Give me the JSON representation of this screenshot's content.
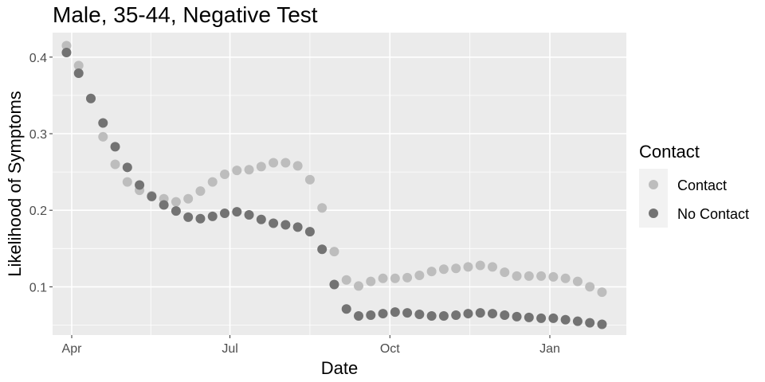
{
  "chart_data": {
    "type": "scatter",
    "title": "Male, 35-44, Negative Test",
    "xlabel": "Date",
    "ylabel": "Likelihood of Symptoms",
    "x_ticks": [
      {
        "label": "Apr",
        "date": "2020-04-01"
      },
      {
        "label": "Jul",
        "date": "2020-07-01"
      },
      {
        "label": "Oct",
        "date": "2020-10-01"
      },
      {
        "label": "Jan",
        "date": "2021-01-01"
      }
    ],
    "y_ticks": [
      0.1,
      0.2,
      0.3,
      0.4
    ],
    "y_tick_labels": [
      "0.1",
      "0.2",
      "0.3",
      "0.4"
    ],
    "xlim": [
      "2020-03-21",
      "2021-02-14"
    ],
    "ylim": [
      0.037,
      0.432
    ],
    "grid": true,
    "legend": {
      "title": "Contact",
      "position": "right",
      "entries": [
        "Contact",
        "No Contact"
      ]
    },
    "colors": {
      "Contact": "#bdbdbd",
      "No Contact": "#737373",
      "panel": "#ebebeb",
      "grid": "#ffffff"
    },
    "series": [
      {
        "name": "Contact",
        "x": [
          "2020-03-29",
          "2020-04-05",
          "2020-04-12",
          "2020-04-19",
          "2020-04-26",
          "2020-05-03",
          "2020-05-10",
          "2020-05-17",
          "2020-05-24",
          "2020-05-31",
          "2020-06-07",
          "2020-06-14",
          "2020-06-21",
          "2020-06-28",
          "2020-07-05",
          "2020-07-12",
          "2020-07-19",
          "2020-07-26",
          "2020-08-02",
          "2020-08-09",
          "2020-08-16",
          "2020-08-23",
          "2020-08-30",
          "2020-09-06",
          "2020-09-13",
          "2020-09-20",
          "2020-09-27",
          "2020-10-04",
          "2020-10-11",
          "2020-10-18",
          "2020-10-25",
          "2020-11-01",
          "2020-11-08",
          "2020-11-15",
          "2020-11-22",
          "2020-11-29",
          "2020-12-06",
          "2020-12-13",
          "2020-12-20",
          "2020-12-27",
          "2021-01-03",
          "2021-01-10",
          "2021-01-17",
          "2021-01-24",
          "2021-01-31"
        ],
        "y": [
          0.415,
          0.389,
          0.346,
          0.296,
          0.26,
          0.237,
          0.226,
          0.219,
          0.215,
          0.211,
          0.215,
          0.225,
          0.237,
          0.247,
          0.252,
          0.253,
          0.257,
          0.262,
          0.262,
          0.258,
          0.24,
          0.203,
          0.146,
          0.109,
          0.101,
          0.107,
          0.111,
          0.111,
          0.112,
          0.115,
          0.12,
          0.123,
          0.124,
          0.126,
          0.128,
          0.126,
          0.119,
          0.114,
          0.114,
          0.114,
          0.113,
          0.111,
          0.107,
          0.1,
          0.093
        ]
      },
      {
        "name": "No Contact",
        "x": [
          "2020-03-29",
          "2020-04-05",
          "2020-04-12",
          "2020-04-19",
          "2020-04-26",
          "2020-05-03",
          "2020-05-10",
          "2020-05-17",
          "2020-05-24",
          "2020-05-31",
          "2020-06-07",
          "2020-06-14",
          "2020-06-21",
          "2020-06-28",
          "2020-07-05",
          "2020-07-12",
          "2020-07-19",
          "2020-07-26",
          "2020-08-02",
          "2020-08-09",
          "2020-08-16",
          "2020-08-23",
          "2020-08-30",
          "2020-09-06",
          "2020-09-13",
          "2020-09-20",
          "2020-09-27",
          "2020-10-04",
          "2020-10-11",
          "2020-10-18",
          "2020-10-25",
          "2020-11-01",
          "2020-11-08",
          "2020-11-15",
          "2020-11-22",
          "2020-11-29",
          "2020-12-06",
          "2020-12-13",
          "2020-12-20",
          "2020-12-27",
          "2021-01-03",
          "2021-01-10",
          "2021-01-17",
          "2021-01-24",
          "2021-01-31"
        ],
        "y": [
          0.406,
          0.379,
          0.346,
          0.314,
          0.283,
          0.256,
          0.233,
          0.218,
          0.207,
          0.199,
          0.191,
          0.189,
          0.192,
          0.196,
          0.198,
          0.194,
          0.188,
          0.183,
          0.181,
          0.178,
          0.172,
          0.149,
          0.103,
          0.071,
          0.062,
          0.063,
          0.065,
          0.067,
          0.066,
          0.064,
          0.062,
          0.062,
          0.063,
          0.065,
          0.066,
          0.065,
          0.063,
          0.061,
          0.06,
          0.059,
          0.059,
          0.057,
          0.055,
          0.053,
          0.051
        ]
      }
    ]
  }
}
